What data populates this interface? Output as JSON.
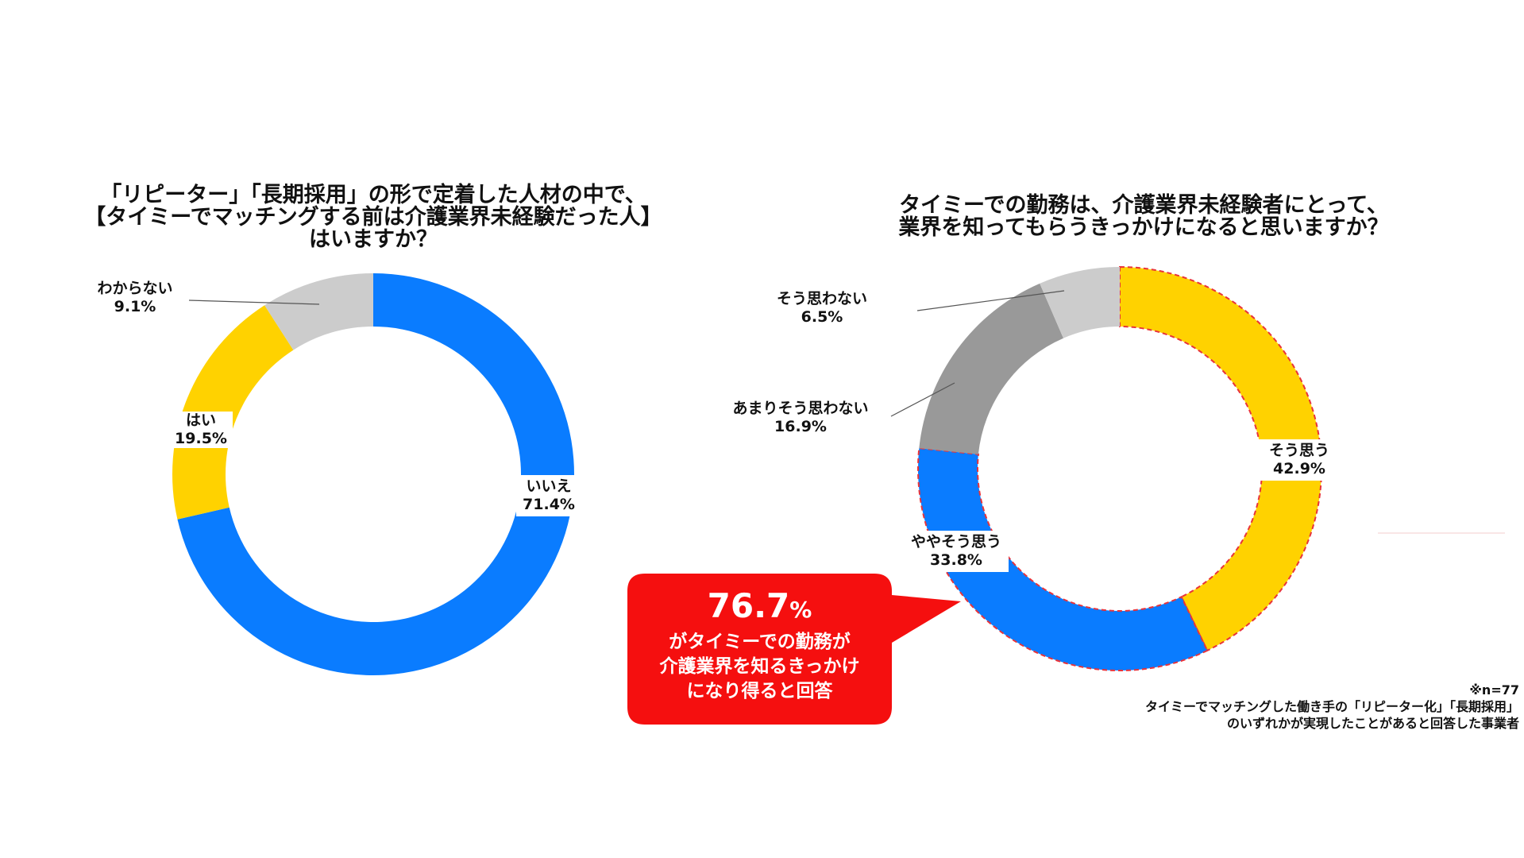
{
  "chart_data": [
    {
      "type": "pie",
      "title_lines": [
        "「リピーター」「長期採用」の形で定着した人材の中で、",
        "【タイミーでマッチングする前は介護業界未経験だった人】",
        "はいますか？"
      ],
      "slices": [
        {
          "label": "いいえ",
          "value": 71.4,
          "value_label": "71.4%",
          "color": "#0A7CFF"
        },
        {
          "label": "はい",
          "value": 19.5,
          "value_label": "19.5%",
          "color": "#FFD200"
        },
        {
          "label": "わからない",
          "value": 9.1,
          "value_label": "9.1%",
          "color": "#CCCCCC"
        }
      ]
    },
    {
      "type": "pie",
      "title_lines": [
        "タイミーでの勤務は、介護業界未経験者にとって、",
        "業界を知ってもらうきっかけになると思いますか？"
      ],
      "slices": [
        {
          "label": "そう思う",
          "value": 42.9,
          "value_label": "42.9%",
          "color": "#FFD200"
        },
        {
          "label": "ややそう思う",
          "value": 33.8,
          "value_label": "33.8%",
          "color": "#0A7CFF"
        },
        {
          "label": "あまりそう思わない",
          "value": 16.9,
          "value_label": "16.9%",
          "color": "#999999"
        },
        {
          "label": "そう思わない",
          "value": 6.5,
          "value_label": "6.5%",
          "color": "#CCCCCC"
        }
      ],
      "highlight_border_color": "#E8333A"
    }
  ],
  "callout": {
    "value": "76.7",
    "unit": "%",
    "lines": [
      "がタイミーでの勤務が",
      "介護業界を知るきっかけ",
      "になり得ると回答"
    ],
    "color": "#F50F0F"
  },
  "note": {
    "lines": [
      "※n=77",
      "タイミーでマッチングした働き手の「リピーター化」「長期採用」",
      "のいずれかが実現したことがあると回答した事業者"
    ]
  }
}
